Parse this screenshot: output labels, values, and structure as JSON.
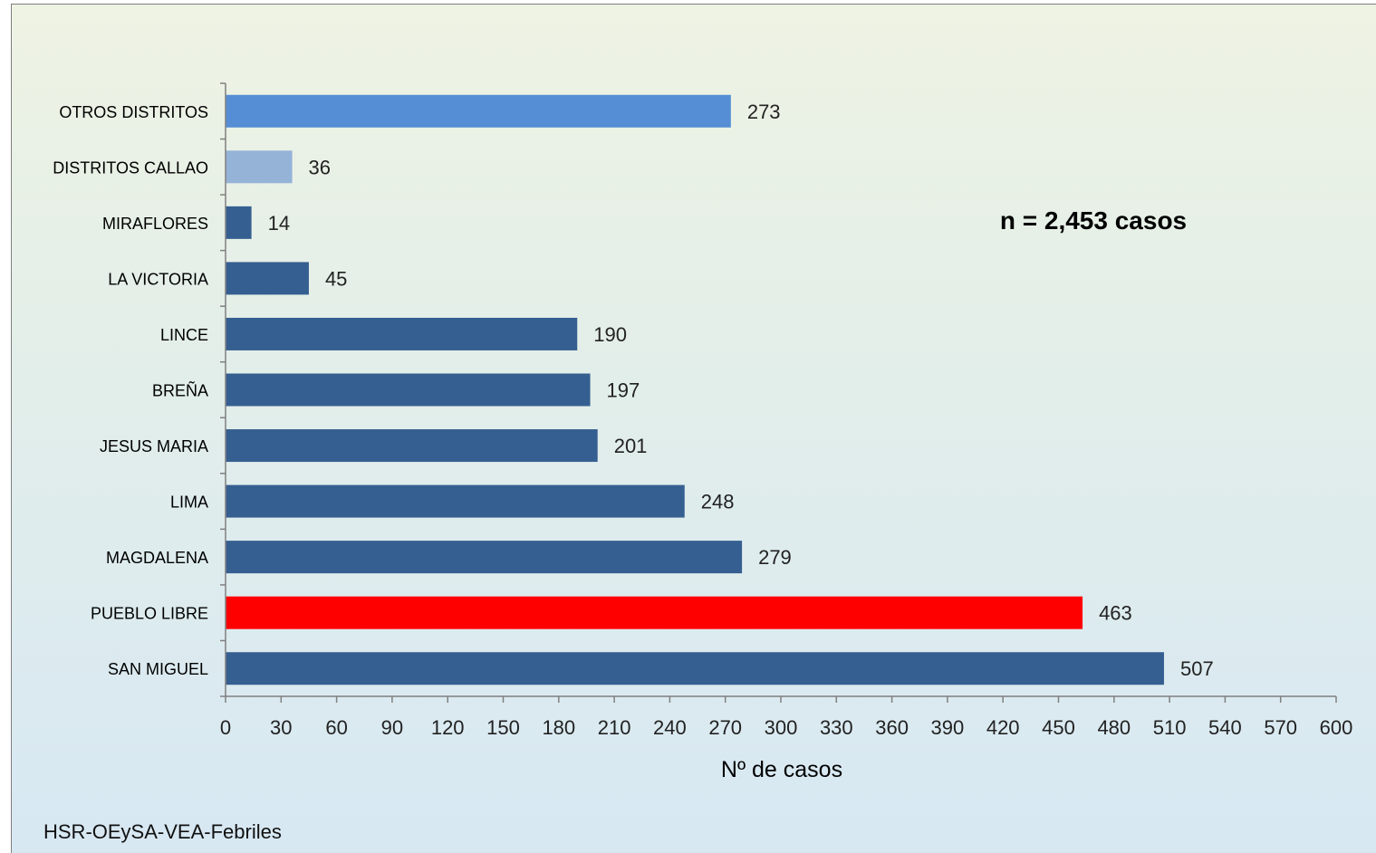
{
  "chart_data": {
    "type": "bar",
    "orientation": "horizontal",
    "categories": [
      "SAN MIGUEL",
      "PUEBLO LIBRE",
      "MAGDALENA",
      "LIMA",
      "JESUS MARIA",
      "BREÑA",
      "LINCE",
      "LA VICTORIA",
      "MIRAFLORES",
      "DISTRITOS CALLAO",
      "OTROS DISTRITOS"
    ],
    "values": [
      507,
      463,
      279,
      248,
      201,
      197,
      190,
      45,
      14,
      36,
      273
    ],
    "bar_colors": [
      "#365f91",
      "#ff0000",
      "#365f91",
      "#365f91",
      "#365f91",
      "#365f91",
      "#365f91",
      "#365f91",
      "#365f91",
      "#95b3d7",
      "#558ed5"
    ],
    "xlim": [
      0,
      600
    ],
    "xticks": [
      0,
      30,
      60,
      90,
      120,
      150,
      180,
      210,
      240,
      270,
      300,
      330,
      360,
      390,
      420,
      450,
      480,
      510,
      540,
      570,
      600
    ],
    "xlabel": "Nº de casos",
    "ylabel": "",
    "title": "",
    "annotation": "n = 2,453 casos",
    "grid": false,
    "legend": "none"
  },
  "source_note": "HSR-OEySA-VEA-Febriles"
}
